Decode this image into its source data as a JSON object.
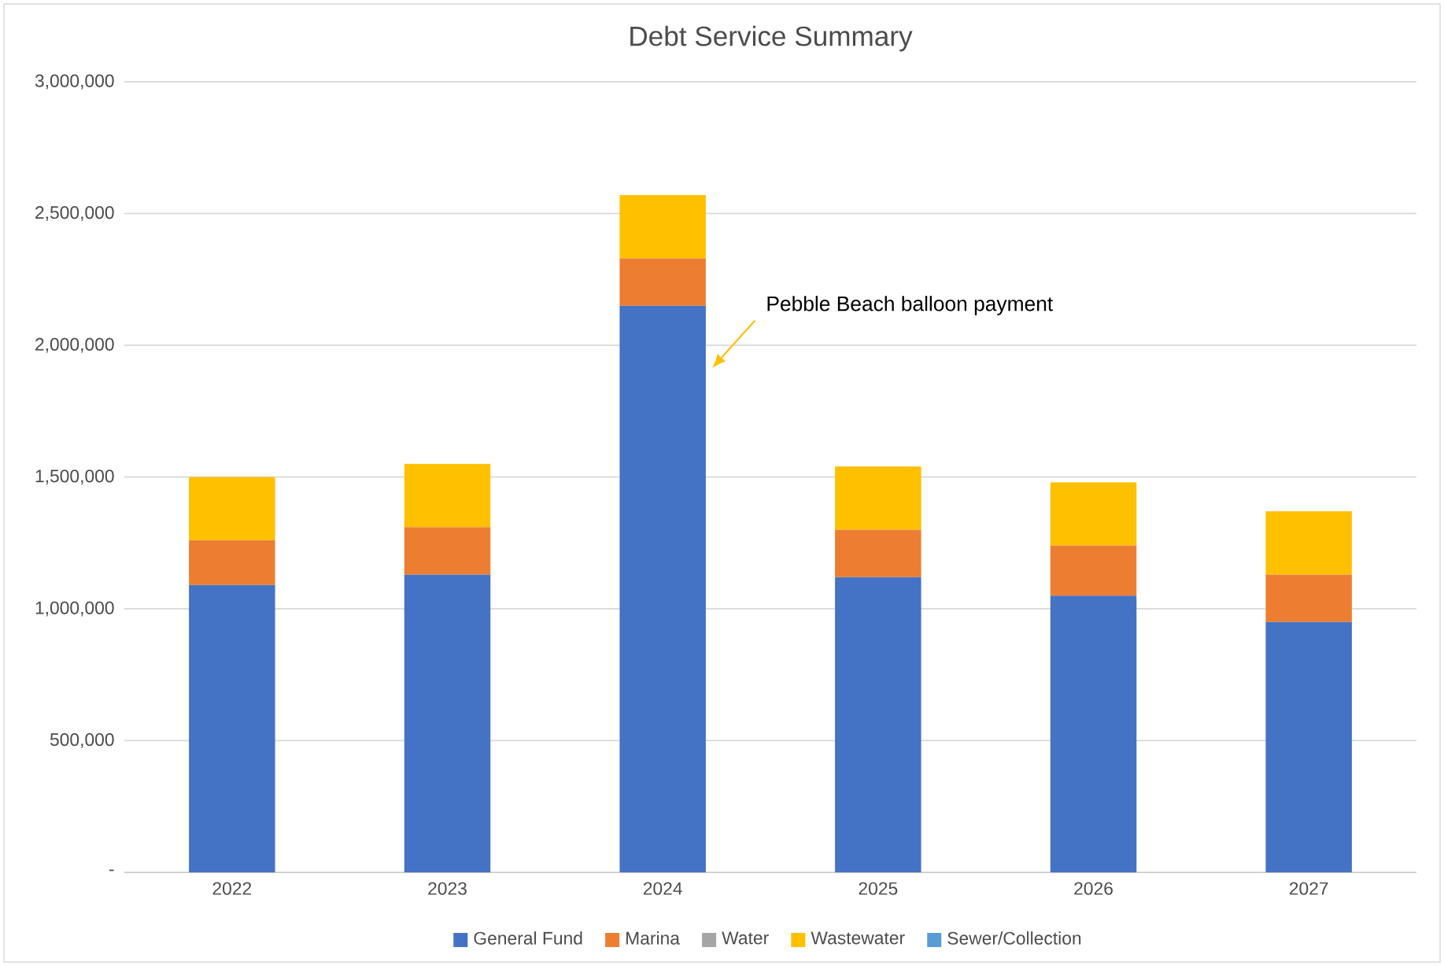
{
  "chart_data": {
    "type": "bar",
    "title": "Debt Service Summary",
    "stacked": true,
    "categories": [
      "2022",
      "2023",
      "2024",
      "2025",
      "2026",
      "2027"
    ],
    "series": [
      {
        "name": "General Fund",
        "color": "#4472c4",
        "values": [
          1090000,
          1130000,
          2150000,
          1120000,
          1050000,
          950000
        ]
      },
      {
        "name": "Marina",
        "color": "#ed7d31",
        "values": [
          170000,
          180000,
          180000,
          180000,
          190000,
          180000
        ]
      },
      {
        "name": "Water",
        "color": "#a5a5a5",
        "values": [
          0,
          0,
          0,
          0,
          0,
          0
        ]
      },
      {
        "name": "Wastewater",
        "color": "#ffc000",
        "values": [
          240000,
          240000,
          240000,
          240000,
          240000,
          240000
        ]
      },
      {
        "name": "Sewer/Collection",
        "color": "#5b9bd5",
        "values": [
          0,
          0,
          0,
          0,
          0,
          0
        ]
      }
    ],
    "ylim": [
      0,
      3000000
    ],
    "yticks": [
      {
        "value": 0,
        "label": "-"
      },
      {
        "value": 500000,
        "label": "500,000"
      },
      {
        "value": 1000000,
        "label": "1,000,000"
      },
      {
        "value": 1500000,
        "label": "1,500,000"
      },
      {
        "value": 2000000,
        "label": "2,000,000"
      },
      {
        "value": 2500000,
        "label": "2,500,000"
      },
      {
        "value": 3000000,
        "label": "3,000,000"
      }
    ],
    "grid": "y",
    "legend": "bottom",
    "annotations": [
      "Pebble Beach balloon payment"
    ]
  }
}
